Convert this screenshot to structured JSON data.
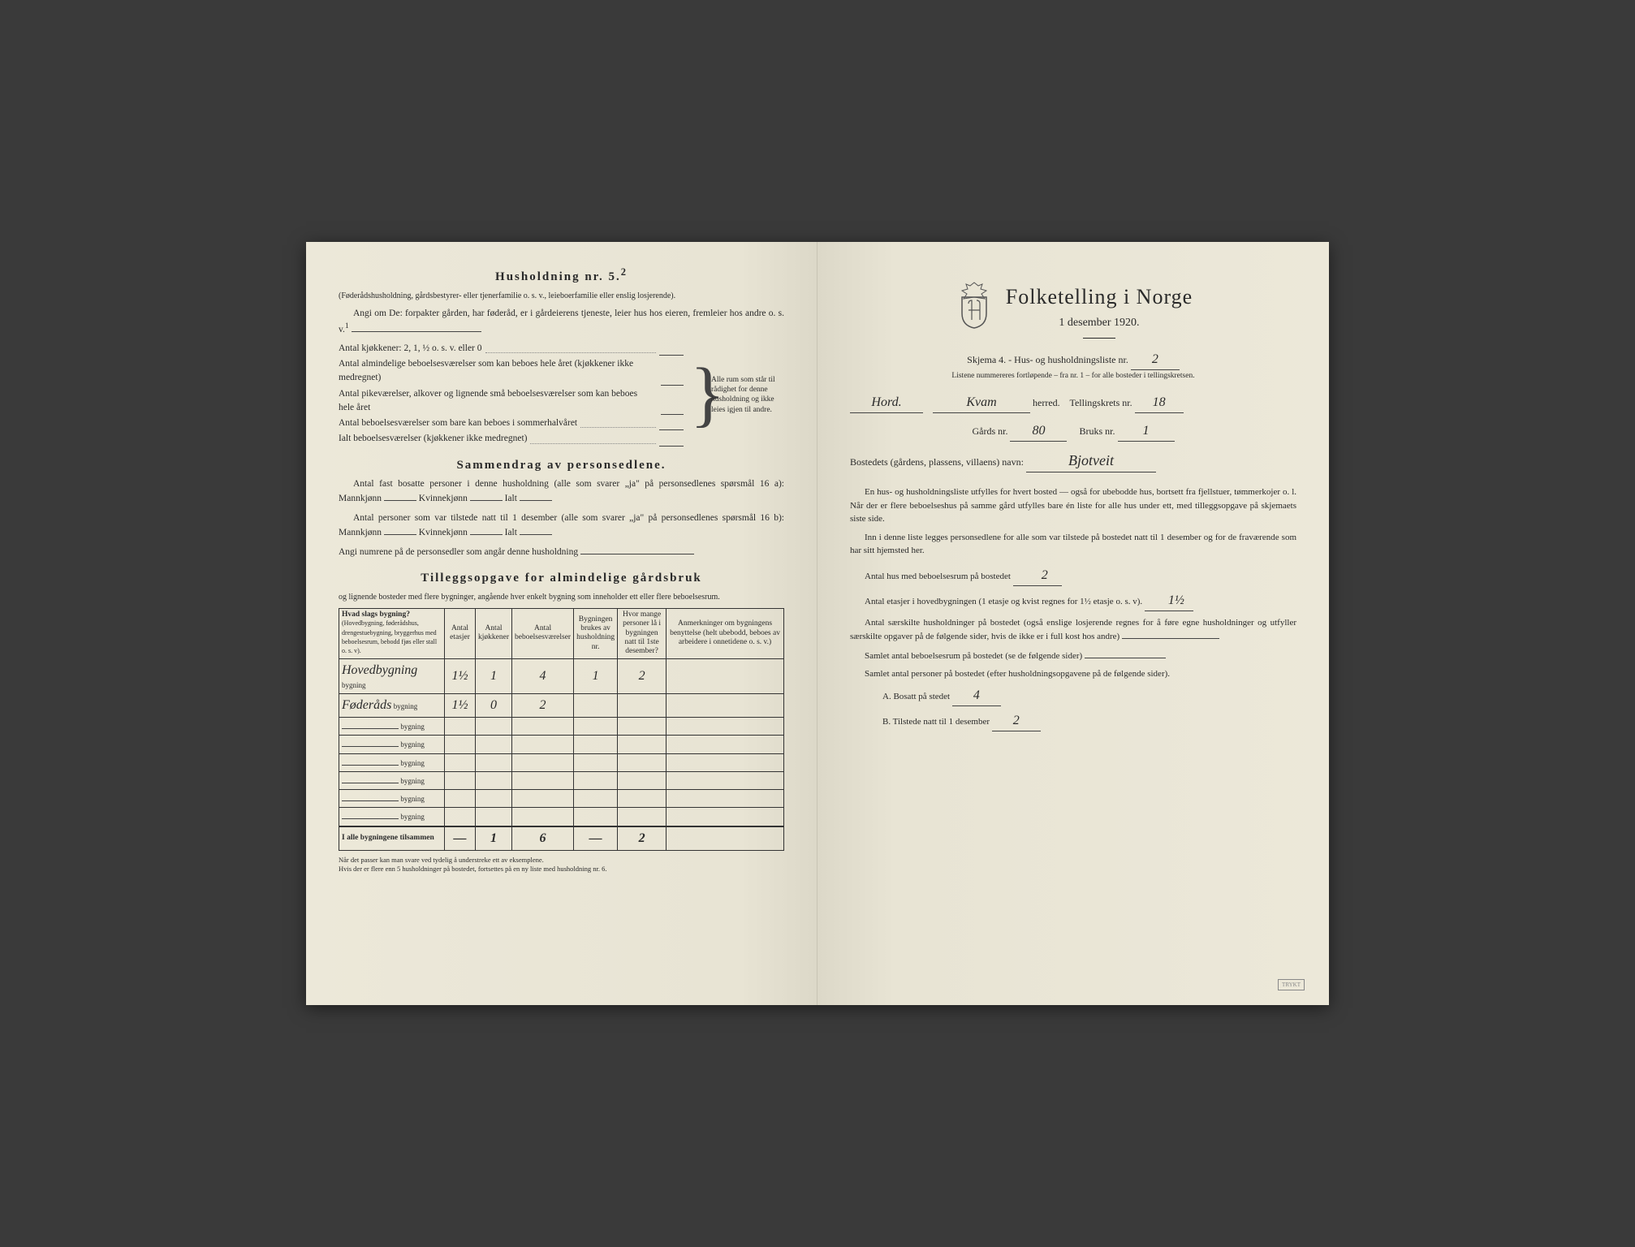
{
  "left": {
    "h5_title": "Husholdning nr. 5.",
    "h5_sup": "2",
    "h5_sub": "(Føderådshusholdning, gårdsbestyrer- eller tjenerfamilie o. s. v., leieboerfamilie eller enslig losjerende).",
    "h5_p1": "Angi om De:  forpakter gården, har føderåd, er i gårdeierens tjeneste, leier hus hos eieren, fremleier hos andre o. s. v.",
    "kitchens_label": "Antal kjøkkener: 2, 1, ½ o. s. v. eller 0",
    "rooms_a": "Antal almindelige beboelsesværelser som kan beboes hele året (kjøkkener ikke medregnet)",
    "rooms_b": "Antal pikeværelser, alkover og lignende små beboelsesværelser som kan beboes hele året",
    "rooms_c": "Antal beboelsesværelser som bare kan beboes i sommerhalvåret",
    "rooms_total": "Ialt beboelsesværelser  (kjøkkener ikke medregnet)",
    "bracket_note": "Alle rum som står til rådighet for denne husholdning og ikke leies igjen til andre.",
    "summary_title": "Sammendrag av personsedlene.",
    "summary_p1a": "Antal fast bosatte personer i denne husholdning (alle som svarer „ja\" på personsedlenes spørsmål 16 a): Mannkjønn",
    "summary_p1b": "Kvinnekjønn",
    "summary_p1c": "Ialt",
    "summary_p2a": "Antal personer som var tilstede natt til 1 desember (alle som svarer „ja\" på personsedlenes spørsmål 16 b): Mannkjønn",
    "summary_angi": "Angi numrene på de personsedler som angår denne husholdning",
    "supp_title": "Tilleggsopgave for almindelige gårdsbruk",
    "supp_sub": "og lignende bosteder med flere bygninger, angående hver enkelt bygning som inneholder ett eller flere beboelsesrum.",
    "table": {
      "headers": {
        "type": "Hvad slags bygning?",
        "type_sub": "(Hovedbygning, føderådshus, drengestuebygning, bryggerhus med beboelsesrum, bebodd fjøs eller stall o. s. v).",
        "floors": "Antal etasjer",
        "kitchens": "Antal kjøkkener",
        "rooms": "Antal beboelsesværelser",
        "usedby": "Bygningen brukes av husholdning nr.",
        "persons": "Hvor mange personer lå i bygningen natt til 1ste desember?",
        "remarks": "Anmerkninger om bygningens benyttelse (helt ubebodd, beboes av arbeidere i onnetidene o. s. v.)"
      },
      "rows": [
        {
          "type_hand": "Hovedbygning",
          "suffix": "bygning",
          "floors": "1½",
          "kitchens": "1",
          "rooms": "4",
          "usedby": "1",
          "persons": "2",
          "remarks": ""
        },
        {
          "type_hand": "Føderåds",
          "suffix": "bygning",
          "floors": "1½",
          "kitchens": "0",
          "rooms": "2",
          "usedby": "",
          "persons": "",
          "remarks": ""
        },
        {
          "type_hand": "",
          "suffix": "bygning",
          "floors": "",
          "kitchens": "",
          "rooms": "",
          "usedby": "",
          "persons": "",
          "remarks": ""
        },
        {
          "type_hand": "",
          "suffix": "bygning",
          "floors": "",
          "kitchens": "",
          "rooms": "",
          "usedby": "",
          "persons": "",
          "remarks": ""
        },
        {
          "type_hand": "",
          "suffix": "bygning",
          "floors": "",
          "kitchens": "",
          "rooms": "",
          "usedby": "",
          "persons": "",
          "remarks": ""
        },
        {
          "type_hand": "",
          "suffix": "bygning",
          "floors": "",
          "kitchens": "",
          "rooms": "",
          "usedby": "",
          "persons": "",
          "remarks": ""
        },
        {
          "type_hand": "",
          "suffix": "bygning",
          "floors": "",
          "kitchens": "",
          "rooms": "",
          "usedby": "",
          "persons": "",
          "remarks": ""
        },
        {
          "type_hand": "",
          "suffix": "bygning",
          "floors": "",
          "kitchens": "",
          "rooms": "",
          "usedby": "",
          "persons": "",
          "remarks": ""
        }
      ],
      "totals_label": "I alle bygningene tilsammen",
      "totals": {
        "floors": "—",
        "kitchens": "1",
        "rooms": "6",
        "usedby": "—",
        "persons": "2",
        "remarks": ""
      }
    },
    "footnote1": "Når det passer kan man svare ved tydelig å understreke ett av eksemplene.",
    "footnote2": "Hvis der er flere enn 5 husholdninger på bostedet, fortsettes på en ny liste med husholdning nr. 6."
  },
  "right": {
    "main_title": "Folketelling i Norge",
    "subtitle": "1 desember 1920.",
    "schema_label": "Skjema 4. - Hus- og husholdningsliste nr.",
    "schema_nr": "2",
    "lists_note": "Listene nummereres fortløpende – fra nr. 1 – for alle bosteder i tellingskretsen.",
    "region_hand": "Hord.",
    "herred_hand": "Kvam",
    "herred_label": "herred.",
    "krets_label": "Tellingskrets nr.",
    "krets_nr": "18",
    "gards_label": "Gårds nr.",
    "gards_nr": "80",
    "bruks_label": "Bruks nr.",
    "bruks_nr": "1",
    "bosted_label": "Bostedets (gårdens, plassens, villaens) navn:",
    "bosted_name": "Bjotveit",
    "p1": "En hus- og husholdningsliste utfylles for hvert bosted — også for ubebodde hus, bortsett fra fjellstuer, tømmerkojer o. l.  Når der er flere beboelseshus på samme gård utfylles bare én liste for alle hus under ett, med tilleggsopgave på skjemaets siste side.",
    "p2": "Inn i denne liste legges personsedlene for alle som var tilstede på bostedet natt til 1 desember og for de fraværende som har sitt hjemsted her.",
    "q1_label": "Antal hus med beboelsesrum på bostedet",
    "q1_val": "2",
    "q2_label_a": "Antal etasjer i hovedbygningen (1 etasje og kvist regnes for 1½ etasje o. s. v).",
    "q2_val": "1½",
    "q3_label": "Antal særskilte husholdninger på bostedet (også enslige losjerende regnes for å føre egne husholdninger og utfyller særskilte opgaver på de følgende sider, hvis de ikke er i full kost hos andre)",
    "q4_label": "Samlet antal beboelsesrum på bostedet (se de følgende sider)",
    "q5_label": "Samlet antal personer på bostedet (efter husholdningsopgavene på de følgende sider).",
    "qA_label": "A.  Bosatt på stedet",
    "qA_val": "4",
    "qB_label": "B.  Tilstede natt til 1 desember",
    "qB_val": "2"
  }
}
